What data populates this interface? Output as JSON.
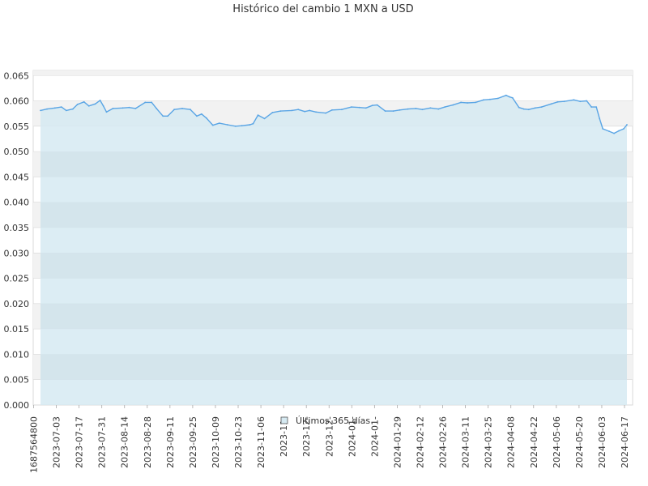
{
  "chart_data": {
    "type": "area",
    "title": "Histórico del cambio 1 MXN a USD",
    "xlabel": "",
    "ylabel": "",
    "ylim": [
      0,
      0.066
    ],
    "grid": true,
    "legend_placement": "bottom-center",
    "y_ticks": [
      "0.000",
      "0.005",
      "0.010",
      "0.015",
      "0.020",
      "0.025",
      "0.030",
      "0.035",
      "0.040",
      "0.045",
      "0.050",
      "0.055",
      "0.060",
      "0.065"
    ],
    "x_ticks": [
      "1687564800",
      "2023-07-03",
      "2023-07-17",
      "2023-07-31",
      "2023-08-14",
      "2023-08-28",
      "2023-09-11",
      "2023-09-25",
      "2023-10-09",
      "2023-10-23",
      "2023-11-06",
      "2023-11-",
      "2023-12-",
      "2023-12-",
      "2024-01-",
      "2024-01-",
      "2024-01-29",
      "2024-02-12",
      "2024-02-26",
      "2024-03-11",
      "2024-03-25",
      "2024-04-08",
      "2024-04-22",
      "2024-05-06",
      "2024-05-20",
      "2024-06-03",
      "2024-06-17"
    ],
    "x_range": [
      "2023-06-24",
      "2024-06-22"
    ],
    "series": [
      {
        "name": "Últimos 365 días",
        "x": [
          "2023-06-24",
          "2023-06-28",
          "2023-07-03",
          "2023-07-07",
          "2023-07-10",
          "2023-07-14",
          "2023-07-17",
          "2023-07-21",
          "2023-07-24",
          "2023-07-28",
          "2023-07-31",
          "2023-08-02",
          "2023-08-04",
          "2023-08-08",
          "2023-08-14",
          "2023-08-18",
          "2023-08-22",
          "2023-08-28",
          "2023-09-01",
          "2023-09-04",
          "2023-09-08",
          "2023-09-11",
          "2023-09-15",
          "2023-09-20",
          "2023-09-25",
          "2023-09-29",
          "2023-10-02",
          "2023-10-05",
          "2023-10-09",
          "2023-10-13",
          "2023-10-18",
          "2023-10-23",
          "2023-10-27",
          "2023-11-01",
          "2023-11-03",
          "2023-11-06",
          "2023-11-10",
          "2023-11-15",
          "2023-11-20",
          "2023-11-27",
          "2023-12-01",
          "2023-12-05",
          "2023-12-08",
          "2023-12-12",
          "2023-12-18",
          "2023-12-22",
          "2023-12-28",
          "2024-01-03",
          "2024-01-08",
          "2024-01-12",
          "2024-01-16",
          "2024-01-19",
          "2024-01-24",
          "2024-01-29",
          "2024-02-02",
          "2024-02-07",
          "2024-02-12",
          "2024-02-16",
          "2024-02-21",
          "2024-02-26",
          "2024-03-01",
          "2024-03-06",
          "2024-03-11",
          "2024-03-15",
          "2024-03-20",
          "2024-03-25",
          "2024-03-29",
          "2024-04-03",
          "2024-04-08",
          "2024-04-10",
          "2024-04-12",
          "2024-04-16",
          "2024-04-19",
          "2024-04-22",
          "2024-04-26",
          "2024-04-30",
          "2024-05-06",
          "2024-05-10",
          "2024-05-14",
          "2024-05-20",
          "2024-05-24",
          "2024-05-28",
          "2024-05-31",
          "2024-06-03",
          "2024-06-05",
          "2024-06-07",
          "2024-06-11",
          "2024-06-14",
          "2024-06-17",
          "2024-06-20",
          "2024-06-22"
        ],
        "values": [
          0.0581,
          0.0584,
          0.0586,
          0.0588,
          0.0581,
          0.0584,
          0.0593,
          0.0598,
          0.059,
          0.0594,
          0.0601,
          0.059,
          0.0578,
          0.0585,
          0.0586,
          0.0587,
          0.0585,
          0.0597,
          0.0597,
          0.0585,
          0.057,
          0.057,
          0.0583,
          0.0585,
          0.0583,
          0.057,
          0.0574,
          0.0566,
          0.0552,
          0.0556,
          0.0553,
          0.055,
          0.0551,
          0.0553,
          0.0555,
          0.0572,
          0.0565,
          0.0577,
          0.058,
          0.0581,
          0.0583,
          0.0579,
          0.0581,
          0.0578,
          0.0576,
          0.0582,
          0.0583,
          0.0588,
          0.0587,
          0.0586,
          0.0591,
          0.0592,
          0.058,
          0.058,
          0.0582,
          0.0584,
          0.0585,
          0.0583,
          0.0586,
          0.0584,
          0.0588,
          0.0592,
          0.0597,
          0.0596,
          0.0597,
          0.0602,
          0.0603,
          0.0605,
          0.0611,
          0.0608,
          0.0606,
          0.0587,
          0.0584,
          0.0583,
          0.0586,
          0.0588,
          0.0594,
          0.0598,
          0.0599,
          0.0602,
          0.0599,
          0.06,
          0.0588,
          0.0588,
          0.0565,
          0.0545,
          0.054,
          0.0536,
          0.0541,
          0.0545,
          0.0553
        ]
      }
    ]
  },
  "colors": {
    "line": "#5aa5e5",
    "area_fill": "#d6eaf2",
    "band_alt": "#f2f2f2",
    "grid": "#d8d8d8",
    "text": "#333333",
    "axis": "#aaaaaa"
  }
}
